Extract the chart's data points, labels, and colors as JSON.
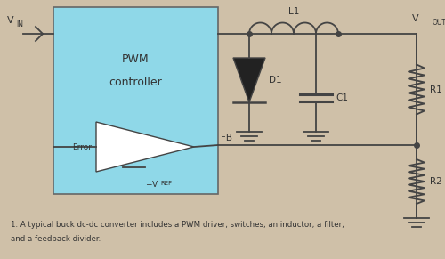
{
  "bg_color": "#cfc0a8",
  "pwm_box_color": "#8fd8e8",
  "pwm_box_edge": "#666666",
  "line_color": "#444444",
  "text_color": "#333333",
  "caption_line1": "1. A typical buck dc-dc converter includes a PWM driver, switches, an inductor, a filter,",
  "caption_line2": "and a feedback divider.",
  "pwm_label1": "PWM",
  "pwm_label2": "controller",
  "vin_label": "V",
  "vin_sub": "IN",
  "vout_label": "V",
  "vout_sub": "OUT",
  "vref_label": "V",
  "vref_sub": "REF",
  "fb_label": "FB",
  "error_label": "Error",
  "l1_label": "L1",
  "d1_label": "D1",
  "c1_label": "C1",
  "r1_label": "R1",
  "r2_label": "R2"
}
